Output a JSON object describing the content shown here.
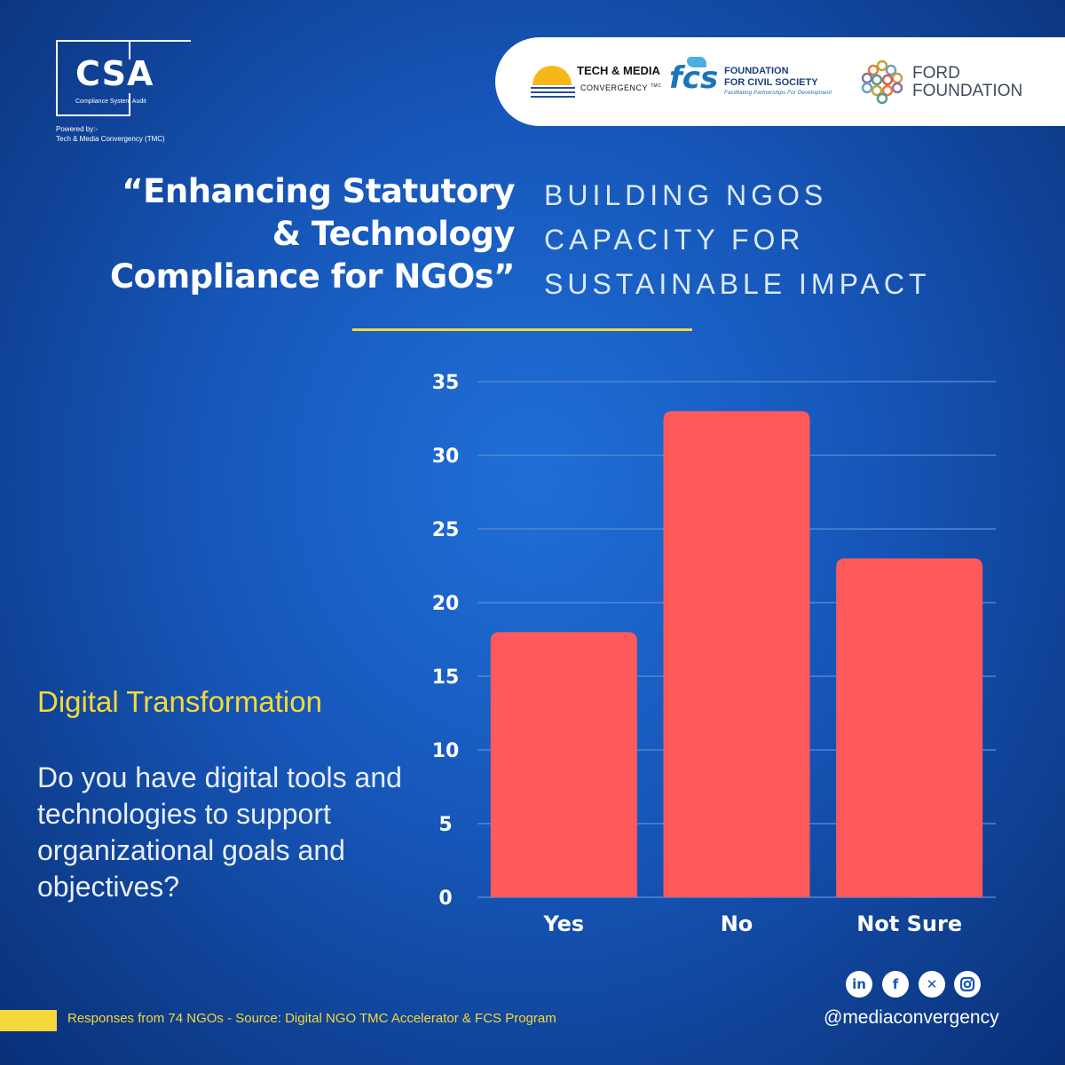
{
  "logo": {
    "name": "CSA",
    "subtitle": "Compliance System Audit",
    "powered_line1": "Powered by:-",
    "powered_line2": "Tech & Media Convergency (TMC)"
  },
  "sponsors": {
    "tmc_line1": "TECH & MEDIA",
    "tmc_line2": "CONVERGENCY",
    "tmc_tm": "TMC",
    "fcs_mark": "fcs",
    "fcs_line1": "FOUNDATION",
    "fcs_line2": "FOR CIVIL SOCIETY",
    "fcs_tagline": "Facilitating Partnerships For Development",
    "ford_line1": "FORD",
    "ford_line2": "FOUNDATION"
  },
  "headline": {
    "lines": [
      "“Enhancing Statutory",
      "& Technology",
      "Compliance for NGOs”"
    ]
  },
  "subheadline": {
    "lines": [
      "BUILDING NGOS",
      "CAPACITY FOR",
      "SUSTAINABLE IMPACT"
    ]
  },
  "section": {
    "title": "Digital Transformation",
    "question": "Do you have digital tools and technologies to support organizational goals and objectives?"
  },
  "chart_data": {
    "type": "bar",
    "categories": [
      "Yes",
      "No",
      "Not Sure"
    ],
    "values": [
      18,
      33,
      23
    ],
    "title": "",
    "xlabel": "",
    "ylabel": "",
    "ylim": [
      0,
      35
    ],
    "yticks": [
      0,
      5,
      10,
      15,
      20,
      25,
      30,
      35
    ],
    "grid": true,
    "legend": "none",
    "bar_color": "#fe5a5c",
    "grid_color": "#4f86d6"
  },
  "footer": {
    "source": "Responses from 74 NGOs - Source: Digital NGO TMC Accelerator & FCS Program",
    "handle": "@mediaconvergency",
    "social_icons": [
      "linkedin-icon",
      "facebook-icon",
      "x-icon",
      "instagram-icon"
    ]
  },
  "colors": {
    "accent_yellow": "#f5d83a",
    "bar_red": "#fe5a5c",
    "background_blue": "#1656b8"
  }
}
